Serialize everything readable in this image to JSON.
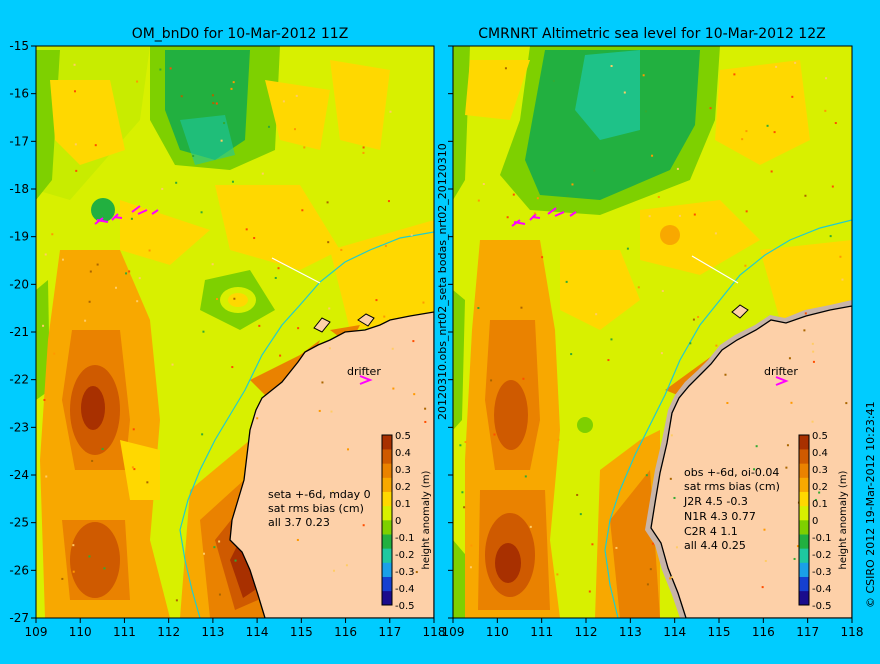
{
  "colors": {
    "background": "#00ccff",
    "land": "#fdd0a8",
    "shelf": "#c8b4a8",
    "coast": "#000000",
    "isobath": "#22cccc",
    "track": "#ff00ff",
    "colorscale": [
      "#1a0c8c",
      "#1540d0",
      "#1aa0e8",
      "#1ec8a0",
      "#22b040",
      "#7ed000",
      "#d8f000",
      "#ffd800",
      "#f8a800",
      "#ea8200",
      "#cf5a00",
      "#a83000"
    ]
  },
  "chart_data": [
    {
      "type": "heatmap",
      "title": "OM_bnD0 for 10-Mar-2012 11Z",
      "xlim": [
        109,
        118
      ],
      "ylim": [
        -27,
        -15
      ],
      "x_ticks": [
        "109",
        "110",
        "111",
        "112",
        "113",
        "114",
        "115",
        "116",
        "117",
        "118"
      ],
      "y_ticks": [
        "-15",
        "-16",
        "-17",
        "-18",
        "-19",
        "-20",
        "-21",
        "-22",
        "-23",
        "-24",
        "-25",
        "-26",
        "-27"
      ],
      "colorbar": {
        "label": "height anomaly (m)",
        "ticks": [
          "0.5",
          "0.4",
          "0.3",
          "0.2",
          "0.1",
          "0",
          "-0.1",
          "-0.2",
          "-0.3",
          "-0.4",
          "-0.5"
        ],
        "range": [
          -0.5,
          0.5
        ]
      },
      "drifter_label": "drifter",
      "stats": [
        "seta +-6d, mday 0",
        "sat rms bias (cm)",
        "all 3.7 0.23"
      ]
    },
    {
      "type": "heatmap",
      "title": "CMRNRT Altimetric sea level  for 10-Mar-2012 12Z",
      "xlim": [
        109,
        118
      ],
      "ylim": [
        -27,
        -15
      ],
      "x_ticks": [
        "109",
        "110",
        "111",
        "112",
        "113",
        "114",
        "115",
        "116",
        "117",
        "118"
      ],
      "y_ticks": [
        "-15",
        "-16",
        "-17",
        "-18",
        "-19",
        "-20",
        "-21",
        "-22",
        "-23",
        "-24",
        "-25",
        "-26",
        "-27"
      ],
      "colorbar": {
        "label": "height anomaly (m)",
        "ticks": [
          "0.5",
          "0.4",
          "0.3",
          "0.2",
          "0.1",
          "0",
          "-0.1",
          "-0.2",
          "-0.3",
          "-0.4",
          "-0.5"
        ],
        "range": [
          -0.5,
          0.5
        ]
      },
      "drifter_label": "drifter",
      "stats": [
        "obs +-6d, oi-0.04",
        "sat rms bias (cm)",
        "J2R   4.5  -0.3",
        "N1R   4.3  0.77",
        "C2R   4  1.1",
        "all  4.4 0.25"
      ]
    }
  ],
  "side_labels": {
    "middle": "20120310.obs_nrt02_seta           bodas_nrt02_20120310",
    "right": "© CSIRO 2012   19-Mar-2012 10:23:41"
  }
}
